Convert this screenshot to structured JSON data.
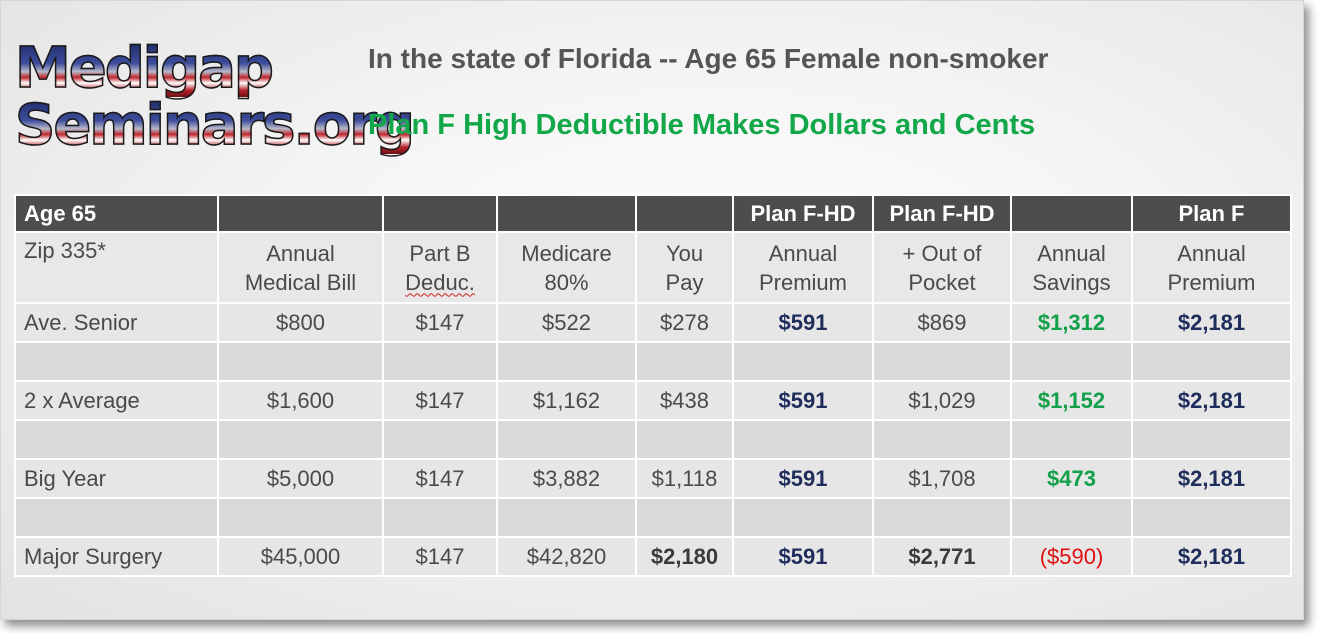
{
  "logo": {
    "line1": "Medigap",
    "line2": "Seminars.org"
  },
  "heading": {
    "line1": "In the state of Florida -- Age 65 Female non-smoker",
    "line2": "Plan F High Deductible Makes Dollars and Cents"
  },
  "colors": {
    "header_bg": "#4d4d4d",
    "navy": "#1f2d5c",
    "green": "#13a04a",
    "red": "#e01010"
  },
  "table": {
    "header_row": [
      "Age 65",
      "",
      "",
      "",
      "",
      "Plan F-HD",
      "Plan F-HD",
      "",
      "Plan F"
    ],
    "sub_header": {
      "c0": "Zip 335*",
      "c1a": "Annual",
      "c1b": "Medical Bill",
      "c2a": "Part B",
      "c2b": "Deduc.",
      "c3a": "Medicare",
      "c3b": "80%",
      "c4a": "You",
      "c4b": "Pay",
      "c5a": "Annual",
      "c5b": "Premium",
      "c6a": "+ Out of",
      "c6b": "Pocket",
      "c7a": "Annual",
      "c7b": "Savings",
      "c8a": "Annual",
      "c8b": "Premium"
    },
    "rows": [
      {
        "label": "Ave. Senior",
        "medical_bill": "$800",
        "part_b": "$147",
        "medicare": "$522",
        "you_pay": "$278",
        "fhd_premium": "$591",
        "out_of_pocket": "$869",
        "savings": "$1,312",
        "f_premium": "$2,181"
      },
      {
        "label": "2 x Average",
        "medical_bill": "$1,600",
        "part_b": "$147",
        "medicare": "$1,162",
        "you_pay": "$438",
        "fhd_premium": "$591",
        "out_of_pocket": "$1,029",
        "savings": "$1,152",
        "f_premium": "$2,181"
      },
      {
        "label": "Big Year",
        "medical_bill": "$5,000",
        "part_b": "$147",
        "medicare": "$3,882",
        "you_pay": "$1,118",
        "fhd_premium": "$591",
        "out_of_pocket": "$1,708",
        "savings": "$473",
        "f_premium": "$2,181"
      },
      {
        "label": "Major Surgery",
        "medical_bill": "$45,000",
        "part_b": "$147",
        "medicare": "$42,820",
        "you_pay": "$2,180",
        "fhd_premium": "$591",
        "out_of_pocket": "$2,771",
        "savings": "($590)",
        "f_premium": "$2,181"
      }
    ]
  }
}
